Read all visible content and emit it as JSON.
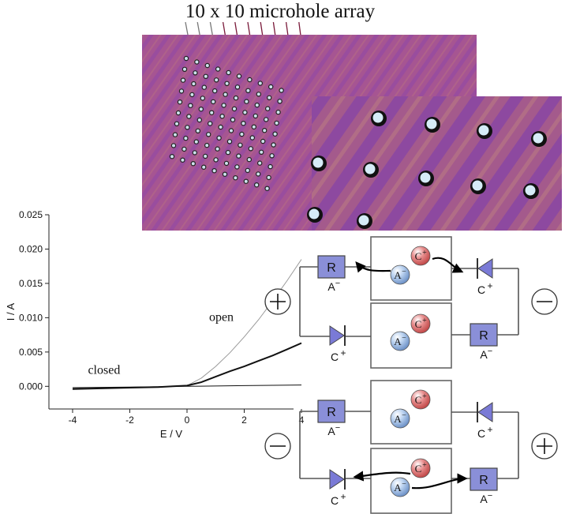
{
  "figure_title": "10 x 10 microhole array",
  "microscopy": {
    "large_image_label": "microhole-array-micrograph",
    "inset_label": "zoomed-micrograph",
    "colors": {
      "base": "#a0528e",
      "stripe": "#7a3aa8",
      "hole": "#cfe9f5",
      "hole_rim": "#1a1a1a"
    }
  },
  "chart_data": {
    "type": "line",
    "xlabel": "E / V",
    "ylabel": "I / A",
    "xlim": [
      -4,
      4
    ],
    "ylim": [
      -0.001,
      0.025
    ],
    "x_ticks": [
      "-4",
      "-2",
      "0",
      "2",
      "4"
    ],
    "y_ticks": [
      "0.000",
      "0.005",
      "0.010",
      "0.015",
      "0.020",
      "0.025"
    ],
    "annotations": [
      {
        "text": "open",
        "x": 1.2,
        "y": 0.0095
      },
      {
        "text": "closed",
        "x": -2.9,
        "y": 0.0018
      }
    ],
    "series": [
      {
        "x": [
          -4,
          -3,
          -2,
          -1,
          -0.5,
          0,
          0.5,
          1,
          1.5,
          2,
          2.5,
          3,
          3.5,
          4
        ],
        "y": [
          -0.0004,
          -0.0003,
          -0.0002,
          -0.0001,
          0,
          0.0001,
          0.0012,
          0.0029,
          0.0049,
          0.0072,
          0.0097,
          0.0125,
          0.0154,
          0.0185
        ],
        "color": "#999999",
        "width": 1
      },
      {
        "x": [
          -4,
          -3,
          -2,
          -1,
          -0.5,
          0,
          0.5,
          1,
          1.5,
          2,
          2.5,
          3,
          3.5,
          4
        ],
        "y": [
          -0.0004,
          -0.0003,
          -0.0002,
          -0.0001,
          0,
          0.0001,
          0.0006,
          0.0014,
          0.0022,
          0.0029,
          0.0037,
          0.0045,
          0.0054,
          0.0063
        ],
        "color": "#111111",
        "width": 2
      },
      {
        "x": [
          -4,
          -2,
          0,
          2,
          4
        ],
        "y": [
          -0.0002,
          -0.0001,
          0,
          0.0001,
          0.0002
        ],
        "color": "#111111",
        "width": 1
      }
    ]
  },
  "circuits": {
    "labels": {
      "rectifier": "R",
      "anion": "A",
      "cation": "C",
      "minus_sign": "−",
      "plus_sign": "+"
    },
    "top_left_sign": "+",
    "top_right_sign": "−",
    "bottom_left_sign": "−",
    "bottom_right_sign": "+",
    "colors": {
      "box": "#8a8fd8",
      "diode": "#7a7ad6",
      "cation_ball": "#e07a7a",
      "anion_ball": "#a8c4ea",
      "wire": "#555555"
    }
  }
}
